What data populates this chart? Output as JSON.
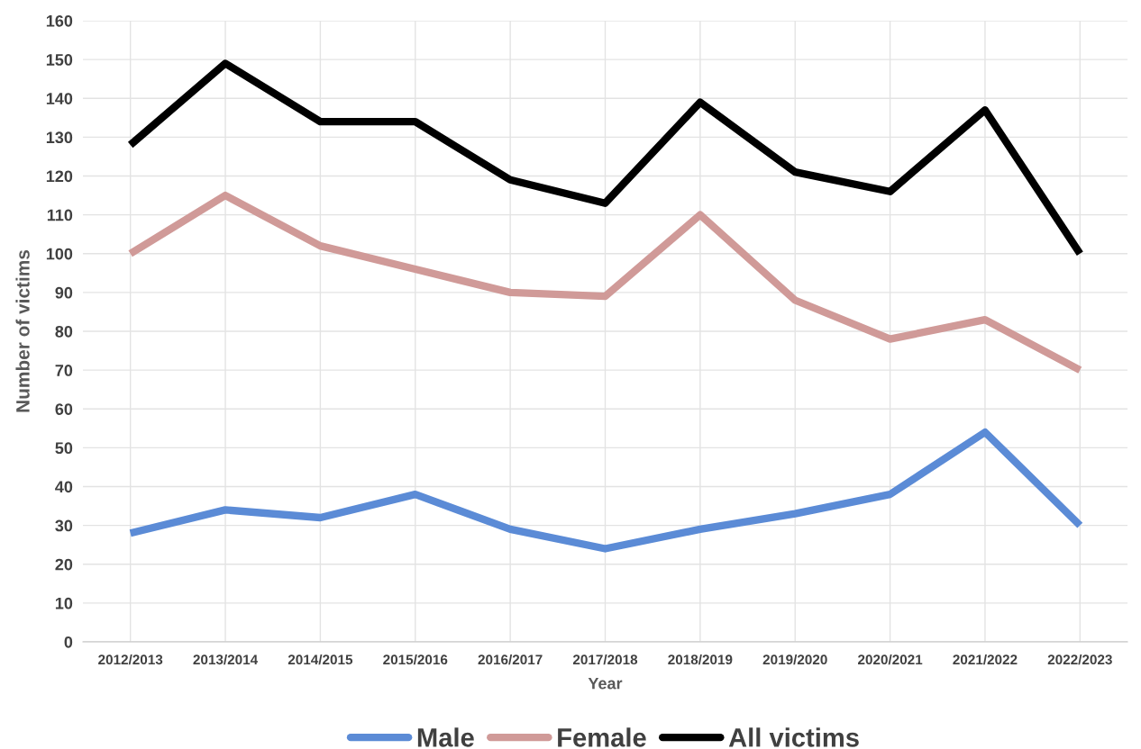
{
  "chart_data": {
    "type": "line",
    "xlabel": "Year",
    "ylabel": "Number of victims",
    "categories": [
      "2012/2013",
      "2013/2014",
      "2014/2015",
      "2015/2016",
      "2016/2017",
      "2017/2018",
      "2018/2019",
      "2019/2020",
      "2020/2021",
      "2021/2022",
      "2022/2023"
    ],
    "series": [
      {
        "name": "Male",
        "color": "#5b8bd6",
        "values": [
          28,
          34,
          32,
          38,
          29,
          24,
          29,
          33,
          38,
          54,
          30
        ]
      },
      {
        "name": "Female",
        "color": "#d09a98",
        "values": [
          100,
          115,
          102,
          96,
          90,
          89,
          110,
          88,
          78,
          83,
          70
        ]
      },
      {
        "name": "All victims",
        "color": "#000000",
        "values": [
          128,
          149,
          134,
          134,
          119,
          113,
          139,
          121,
          116,
          137,
          100
        ]
      }
    ],
    "ylim": [
      0,
      160
    ],
    "yticks": [
      0,
      10,
      20,
      30,
      40,
      50,
      60,
      70,
      80,
      90,
      100,
      110,
      120,
      130,
      140,
      150,
      160
    ],
    "grid": true,
    "legend": "bottom",
    "marker": "none",
    "line_style": "solid"
  }
}
